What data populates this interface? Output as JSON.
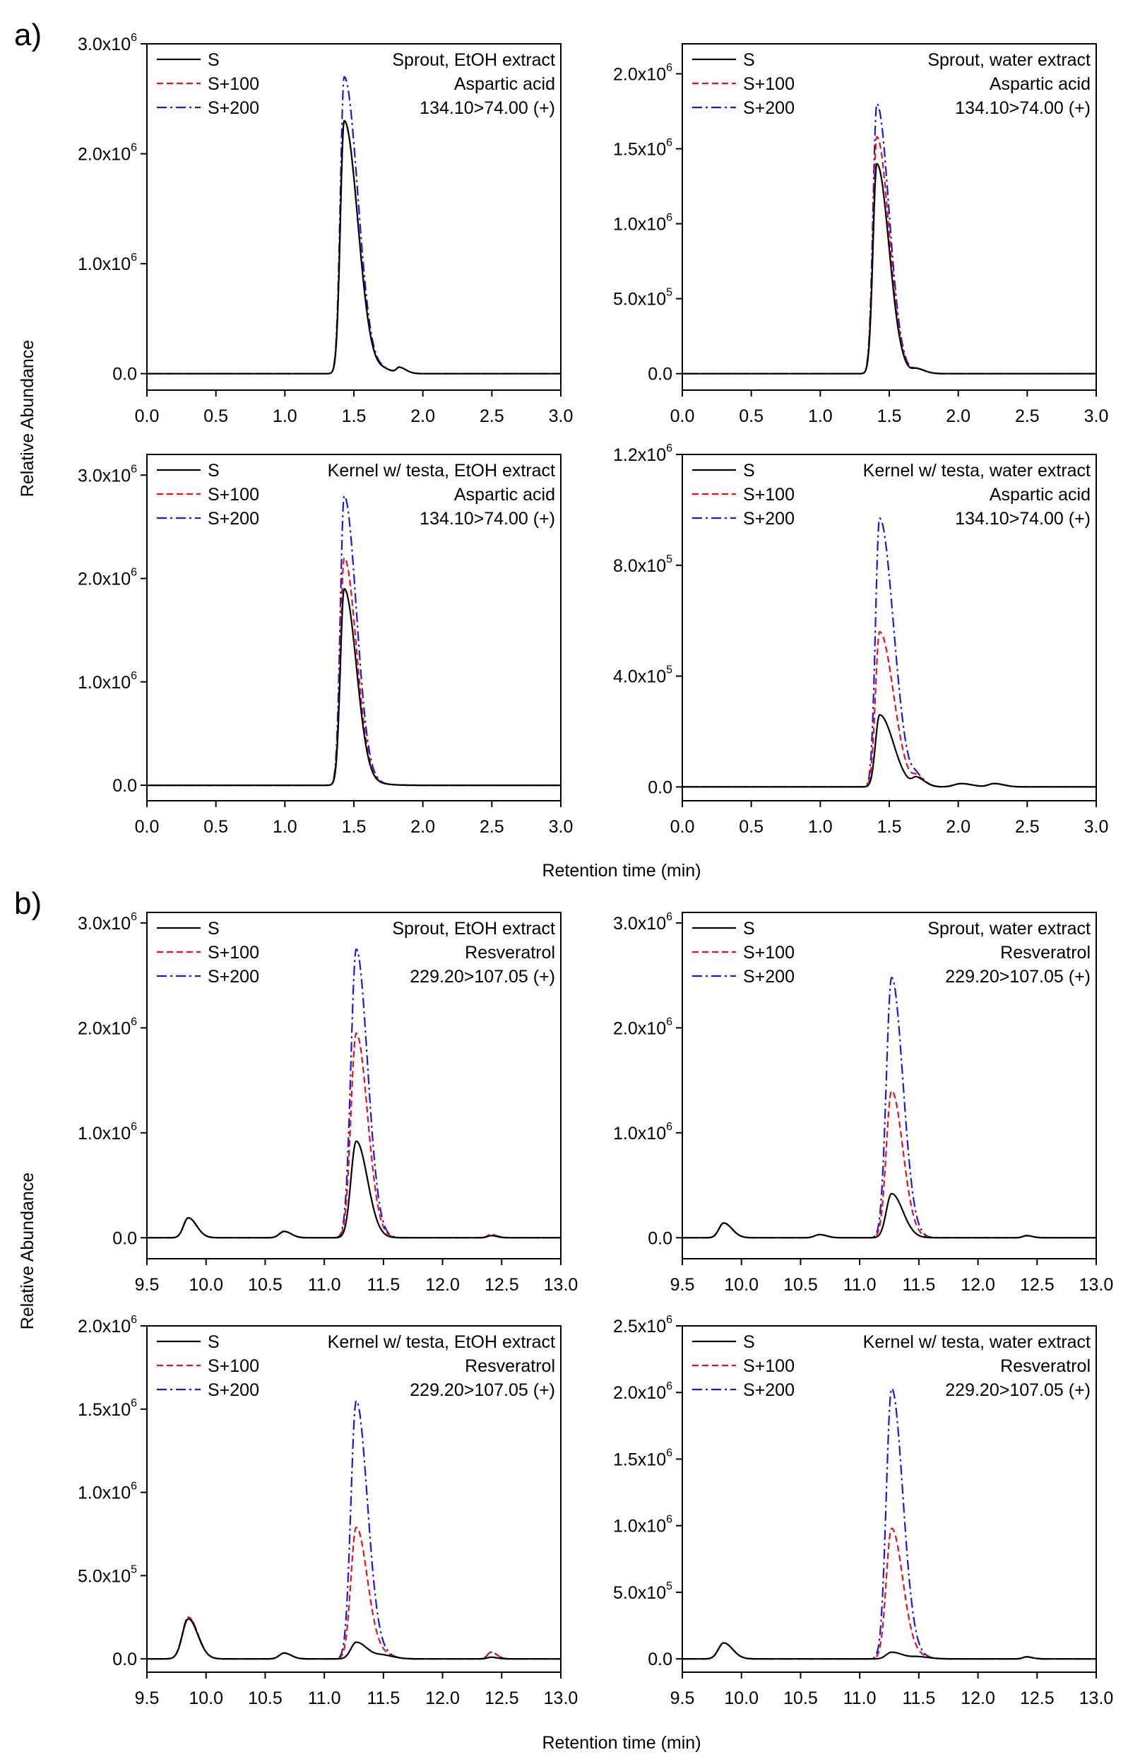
{
  "colors": {
    "S": "#000000",
    "S+100": "#e8111b",
    "S+200": "#1a1adc"
  },
  "figure": {
    "labels": [
      {
        "letter": "a)"
      },
      {
        "letter": "b)"
      }
    ],
    "y_axis_title": "Relative Abundance",
    "x_axis_title": "Retention time (min)"
  },
  "legend": {
    "entries": [
      "S",
      "S+100",
      "S+200"
    ]
  },
  "chart_data": [
    {
      "type": "line",
      "id": "a1",
      "group": "a",
      "annotation": [
        "Sprout, EtOH extract",
        "Aspartic acid",
        "134.10>74.00 (+)"
      ],
      "xlim": [
        0.0,
        3.0
      ],
      "xticks": [
        "0.0",
        "0.5",
        "1.0",
        "1.5",
        "2.0",
        "2.5",
        "3.0"
      ],
      "ylim": [
        -0.15,
        3.0
      ],
      "yscale": "x10^6",
      "yticks": [
        {
          "v": 0,
          "m": "0.0",
          "e": ""
        },
        {
          "v": 1,
          "m": "1.0x10",
          "e": "6"
        },
        {
          "v": 2,
          "m": "2.0x10",
          "e": "6"
        },
        {
          "v": 3,
          "m": "3.0x10",
          "e": "6"
        }
      ],
      "peaks": [
        {
          "c": 1.43,
          "w": 0.028,
          "tail": 0.07,
          "h": {
            "S": 2.3,
            "S+100": 2.3,
            "S+200": 2.7
          }
        },
        {
          "c": 1.72,
          "w": 0.04,
          "tail": 0.03,
          "h": {
            "S": 0.03,
            "S+100": 0.03,
            "S+200": 0.03
          }
        },
        {
          "c": 1.83,
          "w": 0.02,
          "tail": 0.03,
          "h": {
            "S": 0.05,
            "S+100": 0.05,
            "S+200": 0.05
          }
        }
      ]
    },
    {
      "type": "line",
      "id": "a2",
      "group": "a",
      "annotation": [
        "Sprout, water extract",
        "Aspartic acid",
        "134.10>74.00 (+)"
      ],
      "xlim": [
        0.0,
        3.0
      ],
      "xticks": [
        "0.0",
        "0.5",
        "1.0",
        "1.5",
        "2.0",
        "2.5",
        "3.0"
      ],
      "ylim": [
        -0.11,
        2.2
      ],
      "yscale": "x10^6",
      "yticks": [
        {
          "v": 0,
          "m": "0.0",
          "e": ""
        },
        {
          "v": 0.5,
          "m": "5.0x10",
          "e": "5"
        },
        {
          "v": 1.0,
          "m": "1.0x10",
          "e": "6"
        },
        {
          "v": 1.5,
          "m": "1.5x10",
          "e": "6"
        },
        {
          "v": 2.0,
          "m": "2.0x10",
          "e": "6"
        }
      ],
      "peaks": [
        {
          "c": 1.41,
          "w": 0.028,
          "tail": 0.06,
          "h": {
            "S": 1.4,
            "S+100": 1.58,
            "S+200": 1.8
          }
        },
        {
          "c": 1.7,
          "w": 0.03,
          "tail": 0.03,
          "h": {
            "S": 0.03,
            "S+100": 0.03,
            "S+200": 0.03
          }
        }
      ]
    },
    {
      "type": "line",
      "id": "a3",
      "group": "a",
      "annotation": [
        "Kernel w/ testa, EtOH extract",
        "Aspartic acid",
        "134.10>74.00 (+)"
      ],
      "xlim": [
        0.0,
        3.0
      ],
      "xticks": [
        "0.0",
        "0.5",
        "1.0",
        "1.5",
        "2.0",
        "2.5",
        "3.0"
      ],
      "ylim": [
        -0.15,
        3.2
      ],
      "yscale": "x10^6",
      "yticks": [
        {
          "v": 0,
          "m": "0.0",
          "e": ""
        },
        {
          "v": 1,
          "m": "1.0x10",
          "e": "6"
        },
        {
          "v": 2,
          "m": "2.0x10",
          "e": "6"
        },
        {
          "v": 3,
          "m": "3.0x10",
          "e": "6"
        }
      ],
      "peaks": [
        {
          "c": 1.43,
          "w": 0.028,
          "tail": 0.06,
          "h": {
            "S": 1.9,
            "S+100": 2.2,
            "S+200": 2.8
          }
        },
        {
          "c": 1.7,
          "w": 0.05,
          "tail": 0.03,
          "h": {
            "S": 0.01,
            "S+100": 0.01,
            "S+200": 0.01
          }
        }
      ]
    },
    {
      "type": "line",
      "id": "a4",
      "group": "a",
      "annotation": [
        "Kernel w/ testa, water extract",
        "Aspartic acid",
        "134.10>74.00 (+)"
      ],
      "xlim": [
        0.0,
        3.0
      ],
      "xticks": [
        "0.0",
        "0.5",
        "1.0",
        "1.5",
        "2.0",
        "2.5",
        "3.0"
      ],
      "ylim": [
        -0.05,
        1.2
      ],
      "yscale": "x10^6",
      "yticks": [
        {
          "v": 0,
          "m": "0.0",
          "e": ""
        },
        {
          "v": 0.4,
          "m": "4.0x10",
          "e": "5"
        },
        {
          "v": 0.8,
          "m": "8.0x10",
          "e": "5"
        },
        {
          "v": 1.2,
          "m": "1.2x10",
          "e": "6"
        }
      ],
      "peaks": [
        {
          "c": 1.43,
          "w": 0.03,
          "tail": 0.07,
          "h": {
            "S": 0.26,
            "S+100": 0.56,
            "S+200": 0.97
          }
        },
        {
          "c": 1.7,
          "w": 0.03,
          "tail": 0.03,
          "h": {
            "S": 0.03,
            "S+100": 0.03,
            "S+200": 0.03
          }
        },
        {
          "c": 2.02,
          "w": 0.05,
          "tail": 0.03,
          "h": {
            "S": 0.012,
            "S+100": 0.012,
            "S+200": 0.012
          }
        },
        {
          "c": 2.26,
          "w": 0.04,
          "tail": 0.03,
          "h": {
            "S": 0.012,
            "S+100": 0.012,
            "S+200": 0.012
          }
        }
      ]
    },
    {
      "type": "line",
      "id": "b1",
      "group": "b",
      "annotation": [
        "Sprout, EtOH extract",
        "Resveratrol",
        "229.20>107.05 (+)"
      ],
      "xlim": [
        9.5,
        13.0
      ],
      "xticks": [
        "9.5",
        "10.0",
        "10.5",
        "11.0",
        "11.5",
        "12.0",
        "12.5",
        "13.0"
      ],
      "ylim": [
        -0.2,
        3.1
      ],
      "yscale": "x10^6",
      "yticks": [
        {
          "v": 0,
          "m": "0.0",
          "e": ""
        },
        {
          "v": 1,
          "m": "1.0x10",
          "e": "6"
        },
        {
          "v": 2,
          "m": "2.0x10",
          "e": "6"
        },
        {
          "v": 3,
          "m": "3.0x10",
          "e": "6"
        }
      ],
      "peaks": [
        {
          "c": 9.85,
          "w": 0.04,
          "tail": 0.03,
          "h": {
            "S": 0.19,
            "S+100": 0.19,
            "S+200": 0.19
          }
        },
        {
          "c": 10.66,
          "w": 0.04,
          "tail": 0.02,
          "h": {
            "S": 0.06,
            "S+100": 0.06,
            "S+200": 0.06
          }
        },
        {
          "c": 11.27,
          "w": 0.045,
          "tail": 0.05,
          "h": {
            "S": 0.92,
            "S+100": 1.95,
            "S+200": 2.75
          }
        },
        {
          "c": 12.41,
          "w": 0.03,
          "tail": 0.02,
          "h": {
            "S": 0.02,
            "S+100": 0.03,
            "S+200": 0.03
          }
        }
      ]
    },
    {
      "type": "line",
      "id": "b2",
      "group": "b",
      "annotation": [
        "Sprout, water extract",
        "Resveratrol",
        "229.20>107.05 (+)"
      ],
      "xlim": [
        9.5,
        13.0
      ],
      "xticks": [
        "9.5",
        "10.0",
        "10.5",
        "11.0",
        "11.5",
        "12.0",
        "12.5",
        "13.0"
      ],
      "ylim": [
        -0.2,
        3.1
      ],
      "yscale": "x10^6",
      "yticks": [
        {
          "v": 0,
          "m": "0.0",
          "e": ""
        },
        {
          "v": 1,
          "m": "1.0x10",
          "e": "6"
        },
        {
          "v": 2,
          "m": "2.0x10",
          "e": "6"
        },
        {
          "v": 3,
          "m": "3.0x10",
          "e": "6"
        }
      ],
      "peaks": [
        {
          "c": 9.85,
          "w": 0.04,
          "tail": 0.03,
          "h": {
            "S": 0.14,
            "S+100": 0.14,
            "S+200": 0.14
          }
        },
        {
          "c": 10.66,
          "w": 0.04,
          "tail": 0.02,
          "h": {
            "S": 0.03,
            "S+100": 0.03,
            "S+200": 0.03
          }
        },
        {
          "c": 11.27,
          "w": 0.045,
          "tail": 0.05,
          "h": {
            "S": 0.42,
            "S+100": 1.4,
            "S+200": 2.48
          }
        },
        {
          "c": 12.41,
          "w": 0.03,
          "tail": 0.02,
          "h": {
            "S": 0.02,
            "S+100": 0.02,
            "S+200": 0.02
          }
        }
      ]
    },
    {
      "type": "line",
      "id": "b3",
      "group": "b",
      "annotation": [
        "Kernel w/ testa, EtOH extract",
        "Resveratrol",
        "229.20>107.05 (+)"
      ],
      "xlim": [
        9.5,
        13.0
      ],
      "xticks": [
        "9.5",
        "10.0",
        "10.5",
        "11.0",
        "11.5",
        "12.0",
        "12.5",
        "13.0"
      ],
      "ylim": [
        -0.08,
        2.0
      ],
      "yscale": "x10^6",
      "yticks": [
        {
          "v": 0,
          "m": "0.0",
          "e": ""
        },
        {
          "v": 0.5,
          "m": "5.0x10",
          "e": "5"
        },
        {
          "v": 1.0,
          "m": "1.0x10",
          "e": "6"
        },
        {
          "v": 1.5,
          "m": "1.5x10",
          "e": "6"
        },
        {
          "v": 2.0,
          "m": "2.0x10",
          "e": "6"
        }
      ],
      "peaks": [
        {
          "c": 9.85,
          "w": 0.05,
          "tail": 0.03,
          "h": {
            "S": 0.24,
            "S+100": 0.25,
            "S+200": 0.25
          }
        },
        {
          "c": 10.66,
          "w": 0.04,
          "tail": 0.02,
          "h": {
            "S": 0.035,
            "S+100": 0.035,
            "S+200": 0.035
          }
        },
        {
          "c": 11.27,
          "w": 0.045,
          "tail": 0.05,
          "h": {
            "S": 0.1,
            "S+100": 0.79,
            "S+200": 1.55
          }
        },
        {
          "c": 11.5,
          "w": 0.06,
          "tail": 0.03,
          "h": {
            "S": 0.02,
            "S+100": 0.02,
            "S+200": 0.02
          }
        },
        {
          "c": 12.41,
          "w": 0.03,
          "tail": 0.02,
          "h": {
            "S": 0.01,
            "S+100": 0.04,
            "S+200": 0.04
          }
        }
      ]
    },
    {
      "type": "line",
      "id": "b4",
      "group": "b",
      "annotation": [
        "Kernel w/ testa, water extract",
        "Resveratrol",
        "229.20>107.05 (+)"
      ],
      "xlim": [
        9.5,
        13.0
      ],
      "xticks": [
        "9.5",
        "10.0",
        "10.5",
        "11.0",
        "11.5",
        "12.0",
        "12.5",
        "13.0"
      ],
      "ylim": [
        -0.1,
        2.5
      ],
      "yscale": "x10^6",
      "yticks": [
        {
          "v": 0,
          "m": "0.0",
          "e": ""
        },
        {
          "v": 0.5,
          "m": "5.0x10",
          "e": "5"
        },
        {
          "v": 1.0,
          "m": "1.0x10",
          "e": "6"
        },
        {
          "v": 1.5,
          "m": "1.5x10",
          "e": "6"
        },
        {
          "v": 2.0,
          "m": "2.0x10",
          "e": "6"
        },
        {
          "v": 2.5,
          "m": "2.5x10",
          "e": "6"
        }
      ],
      "peaks": [
        {
          "c": 9.85,
          "w": 0.045,
          "tail": 0.03,
          "h": {
            "S": 0.12,
            "S+100": 0.12,
            "S+200": 0.12
          }
        },
        {
          "c": 11.27,
          "w": 0.045,
          "tail": 0.05,
          "h": {
            "S": 0.05,
            "S+100": 0.98,
            "S+200": 2.03
          }
        },
        {
          "c": 11.5,
          "w": 0.06,
          "tail": 0.03,
          "h": {
            "S": 0.015,
            "S+100": 0.015,
            "S+200": 0.015
          }
        },
        {
          "c": 12.41,
          "w": 0.03,
          "tail": 0.02,
          "h": {
            "S": 0.015,
            "S+100": 0.015,
            "S+200": 0.015
          }
        }
      ]
    }
  ]
}
